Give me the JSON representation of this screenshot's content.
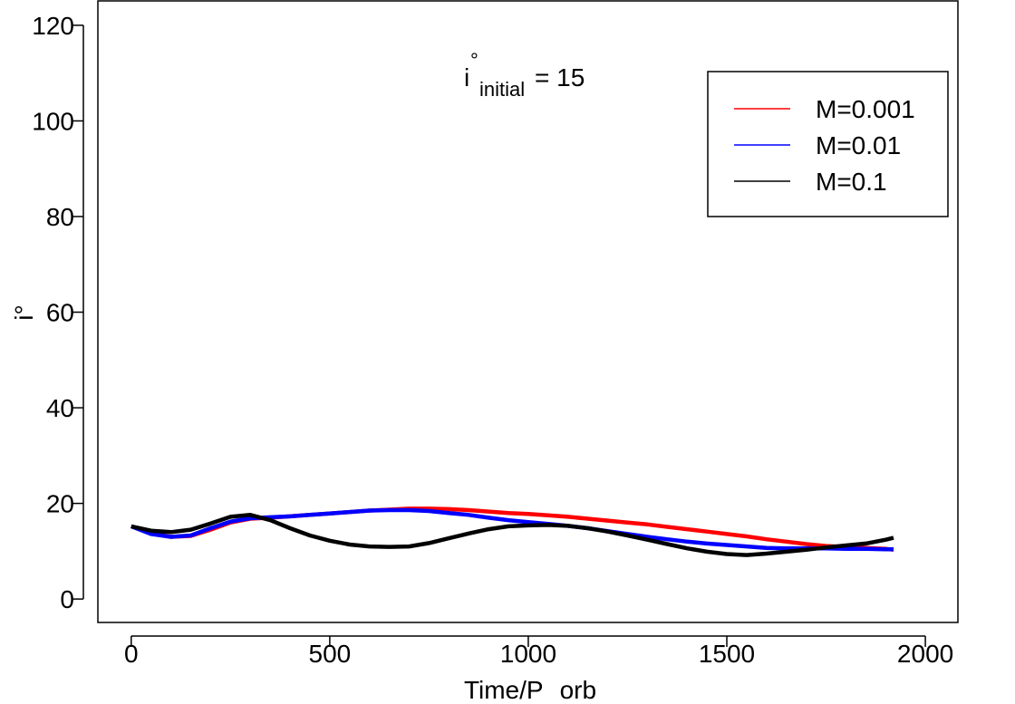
{
  "chart_data": {
    "type": "line",
    "annotation": {
      "base": "i",
      "sup": "°",
      "sub": "initial",
      "text": "= 15"
    },
    "xlabel": "Time/P",
    "xlabel_sub": "orb",
    "ylabel": "i°",
    "x": [
      0,
      50,
      100,
      150,
      200,
      250,
      300,
      350,
      400,
      450,
      500,
      550,
      600,
      650,
      700,
      750,
      800,
      850,
      900,
      950,
      1000,
      1050,
      1100,
      1150,
      1200,
      1250,
      1300,
      1350,
      1400,
      1450,
      1500,
      1550,
      1600,
      1650,
      1700,
      1750,
      1800,
      1850,
      1900,
      1920
    ],
    "series": [
      {
        "name": "M=0.001",
        "color": "#ff0000",
        "values": [
          15.2,
          13.8,
          13.0,
          13.2,
          14.5,
          16.0,
          16.8,
          17.0,
          17.3,
          17.6,
          17.9,
          18.2,
          18.5,
          18.7,
          18.9,
          18.9,
          18.8,
          18.6,
          18.3,
          18.0,
          17.8,
          17.5,
          17.2,
          16.8,
          16.4,
          16.0,
          15.6,
          15.1,
          14.6,
          14.1,
          13.6,
          13.1,
          12.5,
          12.0,
          11.5,
          11.1,
          10.9,
          10.7,
          10.5,
          10.3
        ]
      },
      {
        "name": "M=0.01",
        "color": "#0000ff",
        "values": [
          15.2,
          13.6,
          13.0,
          13.3,
          14.8,
          16.2,
          16.9,
          17.1,
          17.3,
          17.6,
          17.9,
          18.2,
          18.5,
          18.6,
          18.6,
          18.4,
          18.0,
          17.6,
          17.0,
          16.5,
          16.1,
          15.7,
          15.3,
          14.8,
          14.2,
          13.6,
          13.0,
          12.5,
          12.0,
          11.6,
          11.3,
          11.0,
          10.7,
          10.6,
          10.6,
          10.6,
          10.5,
          10.5,
          10.4,
          10.4
        ]
      },
      {
        "name": "M=0.1",
        "color": "#000000",
        "values": [
          15.2,
          14.3,
          14.0,
          14.5,
          15.8,
          17.2,
          17.6,
          16.5,
          14.8,
          13.3,
          12.2,
          11.4,
          11.0,
          10.9,
          11.0,
          11.7,
          12.7,
          13.7,
          14.6,
          15.2,
          15.4,
          15.5,
          15.3,
          14.8,
          14.1,
          13.3,
          12.4,
          11.5,
          10.6,
          9.9,
          9.4,
          9.2,
          9.5,
          9.9,
          10.3,
          10.8,
          11.2,
          11.6,
          12.4,
          12.8
        ]
      }
    ],
    "xlim": [
      -84,
      2082
    ],
    "xticks": [
      0,
      500,
      1000,
      1500,
      2000
    ],
    "ylim": [
      -4.9,
      125.1
    ],
    "yticks": [
      0,
      20,
      40,
      60,
      80,
      100,
      120
    ],
    "legend": "topright"
  }
}
